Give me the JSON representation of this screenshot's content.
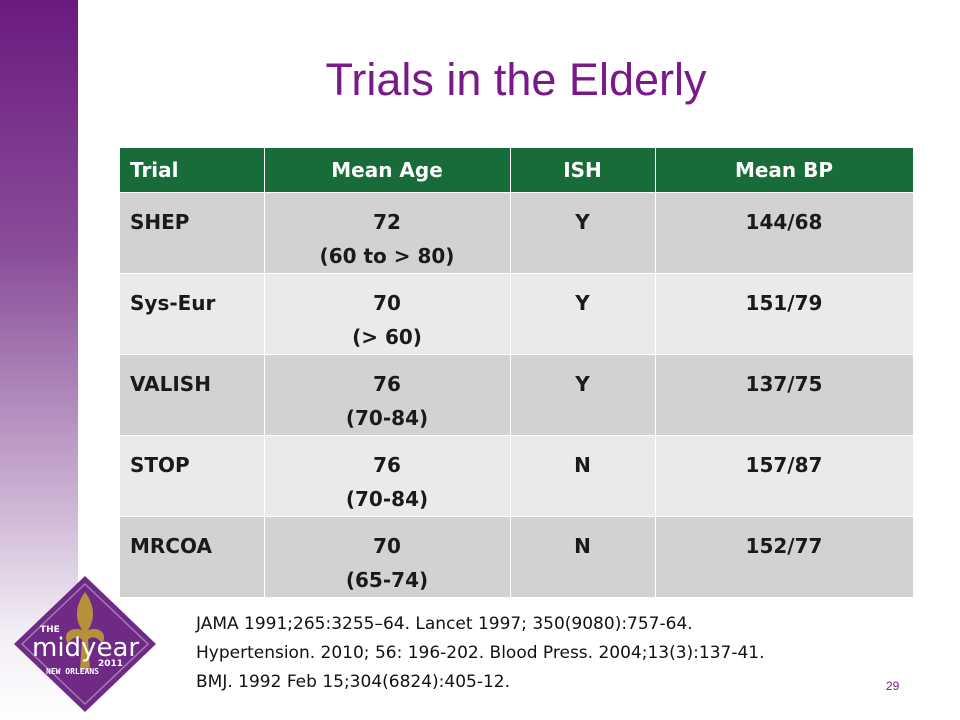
{
  "slide": {
    "title": "Trials in the Elderly",
    "page_number": "29"
  },
  "table": {
    "headers": [
      "Trial",
      "Mean Age",
      "ISH",
      "Mean BP"
    ],
    "rows": [
      {
        "trial": "SHEP",
        "age": "72",
        "age_range": "(60 to > 80)",
        "ish": "Y",
        "bp": "144/68"
      },
      {
        "trial": "Sys-Eur",
        "age": "70",
        "age_range": "(> 60)",
        "ish": "Y",
        "bp": "151/79"
      },
      {
        "trial": "VALISH",
        "age": "76",
        "age_range": "(70-84)",
        "ish": "Y",
        "bp": "137/75"
      },
      {
        "trial": "STOP",
        "age": "76",
        "age_range": "(70-84)",
        "ish": "N",
        "bp": "157/87"
      },
      {
        "trial": "MRCOA",
        "age": "70",
        "age_range": "(65-74)",
        "ish": "N",
        "bp": "152/77"
      }
    ]
  },
  "references": [
    "JAMA 1991;265:3255–64.  Lancet 1997; 350(9080):757-64.",
    "Hypertension. 2010; 56: 196-202. Blood Press. 2004;13(3):137-41.",
    "BMJ. 1992 Feb 15;304(6824):405-12."
  ],
  "logo": {
    "line1": "THE",
    "line2": "midyear",
    "year": "2011",
    "line3": "NEW ORLEANS"
  },
  "colors": {
    "accent_purple": "#7a1a8a",
    "header_green": "#176c3a",
    "row_dark": "#d0d3d0",
    "row_light": "#e9ebe9"
  }
}
